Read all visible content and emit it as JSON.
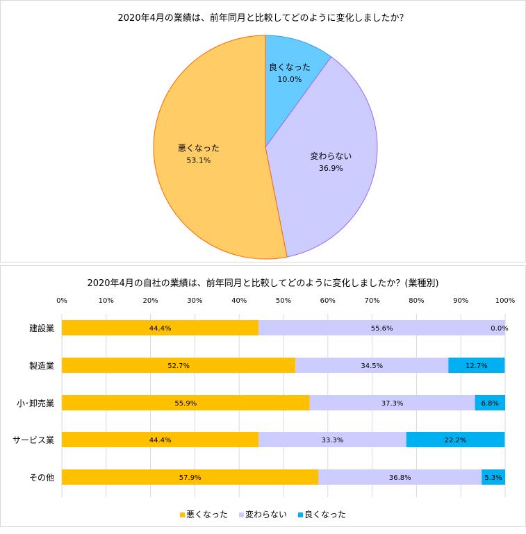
{
  "chart_data": [
    {
      "type": "pie",
      "title": "2020年4月の業績は、前年同月と比較してどのように変化しましたか？",
      "slices": [
        {
          "label": "良くなった",
          "value": 10.0,
          "display": "10.0%",
          "color": "#66CCFF",
          "stroke": "#3399FF"
        },
        {
          "label": "変わらない",
          "value": 36.9,
          "display": "36.9%",
          "color": "#CCCCFF",
          "stroke": "#9966FF"
        },
        {
          "label": "悪くなった",
          "value": 53.1,
          "display": "53.1%",
          "color": "#FFCC66",
          "stroke": "#FF6600"
        }
      ]
    },
    {
      "type": "bar",
      "stacked": true,
      "orientation": "horizontal",
      "title": "2020年4月の自社の業績は、前年同月と比較してどのように変化しましたか？(業種別)",
      "xlim": [
        0,
        100
      ],
      "xticks": [
        "0%",
        "10%",
        "20%",
        "30%",
        "40%",
        "50%",
        "60%",
        "70%",
        "80%",
        "90%",
        "100%"
      ],
      "categories": [
        "建設業",
        "製造業",
        "小･卸売業",
        "サービス業",
        "その他"
      ],
      "series": [
        {
          "name": "悪くなった",
          "color": "#FFC000",
          "values": [
            44.4,
            52.7,
            55.9,
            44.4,
            57.9
          ]
        },
        {
          "name": "変わらない",
          "color": "#CCCCFF",
          "values": [
            55.6,
            34.5,
            37.3,
            33.3,
            36.8
          ]
        },
        {
          "name": "良くなった",
          "color": "#00B0F0",
          "values": [
            0.0,
            12.7,
            6.8,
            22.2,
            5.3
          ]
        }
      ],
      "legend": "bottom"
    }
  ]
}
